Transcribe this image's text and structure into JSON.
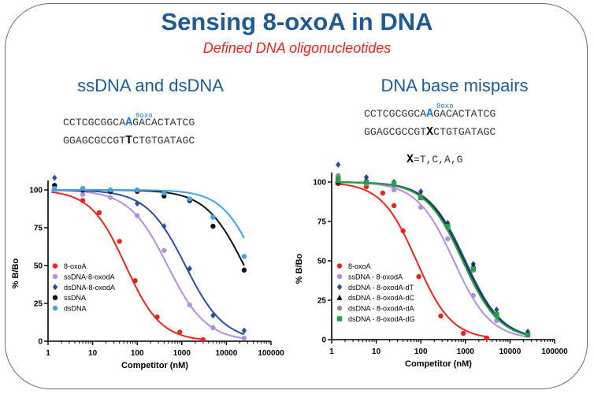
{
  "title": "Sensing 8-oxoA in DNA",
  "subtitle": "Defined DNA oligonucleotides",
  "left_panel": {
    "heading": "ssDNA and dsDNA",
    "oxo_label": "8oxo",
    "seq_top": [
      "CCTCGCGGCA",
      "A",
      "GACACTATCG"
    ],
    "seq_bottom": [
      "GGAGCGCCGT",
      "T",
      "CTGTGATAGC"
    ]
  },
  "right_panel": {
    "heading": "DNA base mispairs",
    "oxo_label": "8oxo",
    "seq_top": [
      "CCTCGCGGCA",
      "A",
      "GACACTATCG"
    ],
    "seq_bottom": [
      "GGAGCGCCGT",
      "X",
      "CTGTGATAGC"
    ],
    "mispair_label": [
      "X",
      "=T,C,A,G"
    ]
  },
  "chart_data": [
    {
      "type": "scatter",
      "xlabel": "Competitor (nM)",
      "ylabel": "% B/Bo",
      "xscale": "log",
      "xlim": [
        1,
        100000
      ],
      "ylim": [
        0,
        100
      ],
      "xticks": [
        1,
        10,
        100,
        1000,
        10000,
        100000
      ],
      "xtick_labels": [
        "1",
        "10",
        "100",
        "1000",
        "10000",
        "100000"
      ],
      "yticks": [
        0,
        25,
        50,
        75,
        100
      ],
      "legend_position": "bottom-left",
      "series": [
        {
          "name": "8-oxoA",
          "color": "#e8261e",
          "marker": "circle",
          "ic50": 55,
          "hill": 1.1,
          "points": [
            [
              1.4,
              100
            ],
            [
              6,
              93
            ],
            [
              14,
              85
            ],
            [
              40,
              66
            ],
            [
              90,
              40
            ],
            [
              280,
              16
            ],
            [
              900,
              6
            ],
            [
              3000,
              1
            ]
          ]
        },
        {
          "name": "ssDNA-8-oxodA",
          "color": "#b48fd9",
          "marker": "circle",
          "ic50": 480,
          "hill": 1.0,
          "points": [
            [
              1.4,
              100
            ],
            [
              6,
              97
            ],
            [
              25,
              95
            ],
            [
              100,
              83
            ],
            [
              400,
              60
            ],
            [
              1500,
              24
            ],
            [
              5000,
              9
            ],
            [
              25000,
              2
            ]
          ]
        },
        {
          "name": "dsDNA-8-oxodA",
          "color": "#2d4d9e",
          "marker": "diamond",
          "ic50": 1200,
          "hill": 1.0,
          "points": [
            [
              1.4,
              108
            ],
            [
              6,
              100
            ],
            [
              25,
              99
            ],
            [
              100,
              91
            ],
            [
              400,
              76
            ],
            [
              1500,
              48
            ],
            [
              5000,
              17
            ],
            [
              25000,
              7
            ]
          ]
        },
        {
          "name": "ssDNA",
          "color": "#111111",
          "marker": "circle",
          "ic50": 25000,
          "hill": 1.0,
          "points": [
            [
              1.4,
              103
            ],
            [
              6,
              100
            ],
            [
              25,
              99
            ],
            [
              100,
              99
            ],
            [
              400,
              96
            ],
            [
              1500,
              93
            ],
            [
              5000,
              76
            ],
            [
              25000,
              47
            ]
          ]
        },
        {
          "name": "dsDNA",
          "color": "#3fa3e6",
          "marker": "circle",
          "ic50": 50000,
          "hill": 1.1,
          "points": [
            [
              1.4,
              101
            ],
            [
              6,
              101
            ],
            [
              25,
              100
            ],
            [
              100,
              100
            ],
            [
              400,
              98
            ],
            [
              1500,
              94
            ],
            [
              5000,
              82
            ],
            [
              25000,
              56
            ]
          ]
        }
      ]
    },
    {
      "type": "scatter",
      "xlabel": "Competitor (nM)",
      "ylabel": "% B/Bo",
      "xscale": "log",
      "xlim": [
        1,
        100000
      ],
      "ylim": [
        0,
        100
      ],
      "xticks": [
        1,
        10,
        100,
        1000,
        10000,
        100000
      ],
      "xtick_labels": [
        "1",
        "10",
        "100",
        "1000",
        "10000",
        "100000"
      ],
      "yticks": [
        0,
        25,
        50,
        75,
        100
      ],
      "legend_position": "bottom-left",
      "series": [
        {
          "name": "8-oxoA",
          "color": "#e8261e",
          "marker": "circle",
          "ic50": 80,
          "hill": 1.1,
          "points": [
            [
              1.4,
              99
            ],
            [
              6,
              97
            ],
            [
              14,
              93
            ],
            [
              25,
              85
            ],
            [
              40,
              69
            ],
            [
              90,
              40
            ],
            [
              280,
              15
            ],
            [
              900,
              4
            ],
            [
              3000,
              1
            ]
          ]
        },
        {
          "name": "ssDNA - 8-oxodA",
          "color": "#b48fd9",
          "marker": "circle",
          "ic50": 550,
          "hill": 1.05,
          "points": [
            [
              1.4,
              101
            ],
            [
              6,
              100
            ],
            [
              25,
              95
            ],
            [
              100,
              84
            ],
            [
              400,
              64
            ],
            [
              1500,
              28
            ],
            [
              5000,
              12
            ],
            [
              25000,
              3
            ]
          ]
        },
        {
          "name": "dsDNA - 8-oxodA-dT",
          "color": "#2d4d9e",
          "marker": "diamond",
          "ic50": 1000,
          "hill": 1.05,
          "points": [
            [
              1.4,
              111
            ],
            [
              6,
              103
            ],
            [
              25,
              100
            ],
            [
              100,
              94
            ],
            [
              400,
              74
            ],
            [
              1500,
              48
            ],
            [
              5000,
              19
            ],
            [
              25000,
              5
            ]
          ]
        },
        {
          "name": "dsDNA - 8-oxodA-dC",
          "color": "#111111",
          "marker": "triangle",
          "ic50": 920,
          "hill": 1.05,
          "points": [
            [
              1.4,
              100
            ],
            [
              6,
              101
            ],
            [
              25,
              99
            ],
            [
              100,
              92
            ],
            [
              400,
              73
            ],
            [
              1500,
              47
            ],
            [
              5000,
              16
            ],
            [
              25000,
              4
            ]
          ]
        },
        {
          "name": "dsDNA - 8-oxodA-dA",
          "color": "#8c8c8c",
          "marker": "circle",
          "ic50": 860,
          "hill": 1.05,
          "points": [
            [
              1.4,
              104
            ],
            [
              6,
              99
            ],
            [
              25,
              98
            ],
            [
              100,
              91
            ],
            [
              400,
              71
            ],
            [
              1500,
              44
            ],
            [
              5000,
              15
            ],
            [
              25000,
              3
            ]
          ]
        },
        {
          "name": "dsDNA - 8-oxodA-dG",
          "color": "#1fa049",
          "marker": "square",
          "ic50": 880,
          "hill": 1.05,
          "points": [
            [
              1.4,
              102
            ],
            [
              6,
              100
            ],
            [
              25,
              99
            ],
            [
              100,
              90
            ],
            [
              400,
              72
            ],
            [
              1500,
              45
            ],
            [
              5000,
              16
            ],
            [
              25000,
              3
            ]
          ]
        }
      ]
    }
  ]
}
